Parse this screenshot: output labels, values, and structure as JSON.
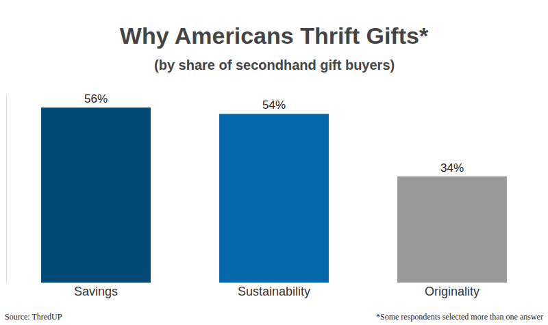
{
  "chart_data": {
    "type": "bar",
    "title": "Why Americans Thrift Gifts*",
    "subtitle": "(by share of secondhand gift buyers)",
    "categories": [
      "Savings",
      "Sustainability",
      "Originality"
    ],
    "values": [
      56,
      54,
      34
    ],
    "value_labels": [
      "56%",
      "54%",
      "34%"
    ],
    "colors": [
      "#014a78",
      "#0568ac",
      "#999999"
    ],
    "data_labels": true,
    "tick_labels": "x",
    "grid": false,
    "ylim": [
      0,
      60
    ],
    "yticks": [],
    "annotations": [
      "Source: ThredUP",
      "*Some respondents selected more than one answer"
    ]
  }
}
